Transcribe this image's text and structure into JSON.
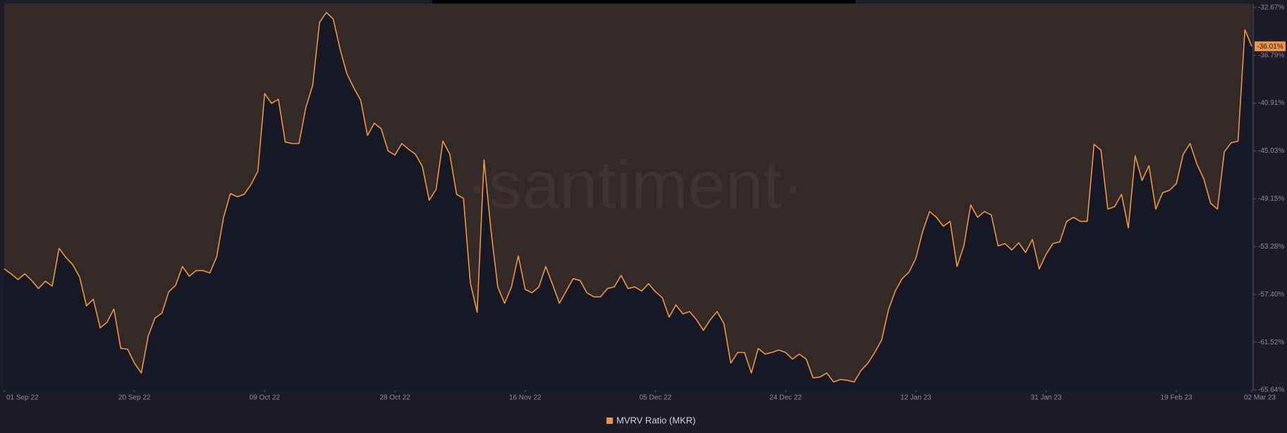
{
  "chart_data": {
    "type": "line",
    "watermark": "·santiment·",
    "x": [
      "2022-09-01",
      "2022-09-02",
      "2022-09-03",
      "2022-09-04",
      "2022-09-05",
      "2022-09-06",
      "2022-09-07",
      "2022-09-08",
      "2022-09-09",
      "2022-09-10",
      "2022-09-11",
      "2022-09-12",
      "2022-09-13",
      "2022-09-14",
      "2022-09-15",
      "2022-09-16",
      "2022-09-17",
      "2022-09-18",
      "2022-09-19",
      "2022-09-20",
      "2022-09-21",
      "2022-09-22",
      "2022-09-23",
      "2022-09-24",
      "2022-09-25",
      "2022-09-26",
      "2022-09-27",
      "2022-09-28",
      "2022-09-29",
      "2022-09-30",
      "2022-10-01",
      "2022-10-02",
      "2022-10-03",
      "2022-10-04",
      "2022-10-05",
      "2022-10-06",
      "2022-10-07",
      "2022-10-08",
      "2022-10-09",
      "2022-10-10",
      "2022-10-11",
      "2022-10-12",
      "2022-10-13",
      "2022-10-14",
      "2022-10-15",
      "2022-10-16",
      "2022-10-17",
      "2022-10-18",
      "2022-10-19",
      "2022-10-20",
      "2022-10-21",
      "2022-10-22",
      "2022-10-23",
      "2022-10-24",
      "2022-10-25",
      "2022-10-26",
      "2022-10-27",
      "2022-10-28",
      "2022-10-29",
      "2022-10-30",
      "2022-10-31",
      "2022-11-01",
      "2022-11-02",
      "2022-11-03",
      "2022-11-04",
      "2022-11-05",
      "2022-11-06",
      "2022-11-07",
      "2022-11-08",
      "2022-11-09",
      "2022-11-10",
      "2022-11-11",
      "2022-11-12",
      "2022-11-13",
      "2022-11-14",
      "2022-11-15",
      "2022-11-16",
      "2022-11-17",
      "2022-11-18",
      "2022-11-19",
      "2022-11-20",
      "2022-11-21",
      "2022-11-22",
      "2022-11-23",
      "2022-11-24",
      "2022-11-25",
      "2022-11-26",
      "2022-11-27",
      "2022-11-28",
      "2022-11-29",
      "2022-11-30",
      "2022-12-01",
      "2022-12-02",
      "2022-12-03",
      "2022-12-04",
      "2022-12-05",
      "2022-12-06",
      "2022-12-07",
      "2022-12-08",
      "2022-12-09",
      "2022-12-10",
      "2022-12-11",
      "2022-12-12",
      "2022-12-13",
      "2022-12-14",
      "2022-12-15",
      "2022-12-16",
      "2022-12-17",
      "2022-12-18",
      "2022-12-19",
      "2022-12-20",
      "2022-12-21",
      "2022-12-22",
      "2022-12-23",
      "2022-12-24",
      "2022-12-25",
      "2022-12-26",
      "2022-12-27",
      "2022-12-28",
      "2022-12-29",
      "2022-12-30",
      "2022-12-31",
      "2023-01-01",
      "2023-01-02",
      "2023-01-03",
      "2023-01-04",
      "2023-01-05",
      "2023-01-06",
      "2023-01-07",
      "2023-01-08",
      "2023-01-09",
      "2023-01-10",
      "2023-01-11",
      "2023-01-12",
      "2023-01-13",
      "2023-01-14",
      "2023-01-15",
      "2023-01-16",
      "2023-01-17",
      "2023-01-18",
      "2023-01-19",
      "2023-01-20",
      "2023-01-21",
      "2023-01-22",
      "2023-01-23",
      "2023-01-24",
      "2023-01-25",
      "2023-01-26",
      "2023-01-27",
      "2023-01-28",
      "2023-01-29",
      "2023-01-30",
      "2023-01-31",
      "2023-02-01",
      "2023-02-02",
      "2023-02-03",
      "2023-02-04",
      "2023-02-05",
      "2023-02-06",
      "2023-02-07",
      "2023-02-08",
      "2023-02-09",
      "2023-02-10",
      "2023-02-11",
      "2023-02-12",
      "2023-02-13",
      "2023-02-14",
      "2023-02-15",
      "2023-02-16",
      "2023-02-17",
      "2023-02-18",
      "2023-02-19",
      "2023-02-20",
      "2023-02-21",
      "2023-02-22",
      "2023-02-23",
      "2023-02-24",
      "2023-02-25",
      "2023-02-26",
      "2023-02-27",
      "2023-02-28",
      "2023-03-01",
      "2023-03-02"
    ],
    "series": [
      {
        "name": "MVRV Ratio (MKR)",
        "color": "#f0953f",
        "values": [
          -55.2,
          -55.62,
          -56.12,
          -55.62,
          -56.19,
          -56.89,
          -56.26,
          -56.68,
          -53.43,
          -54.21,
          -54.84,
          -55.9,
          -58.38,
          -57.81,
          -60.28,
          -59.79,
          -58.66,
          -62.05,
          -62.12,
          -63.32,
          -64.17,
          -60.99,
          -59.43,
          -59.01,
          -57.17,
          -56.61,
          -54.99,
          -55.83,
          -55.34,
          -55.34,
          -55.55,
          -54.14,
          -50.75,
          -48.7,
          -48.98,
          -48.77,
          -47.92,
          -46.79,
          -40.08,
          -40.93,
          -40.58,
          -44.25,
          -44.39,
          -44.39,
          -41.29,
          -39.38,
          -33.94,
          -33.09,
          -33.66,
          -36.27,
          -38.39,
          -39.59,
          -40.65,
          -43.69,
          -42.63,
          -43.12,
          -45.03,
          -45.38,
          -44.39,
          -44.89,
          -45.31,
          -46.37,
          -49.27,
          -48.35,
          -44.18,
          -45.31,
          -48.77,
          -49.12,
          -56.4,
          -58.94,
          -45.8,
          -51.81,
          -56.75,
          -58.16,
          -56.75,
          -54.07,
          -56.96,
          -57.25,
          -56.75,
          -54.99,
          -56.54,
          -58.16,
          -57.1,
          -56.04,
          -56.19,
          -57.25,
          -57.6,
          -57.6,
          -56.89,
          -56.75,
          -55.76,
          -56.89,
          -56.75,
          -57.1,
          -56.47,
          -57.17,
          -57.67,
          -59.36,
          -58.3,
          -59.08,
          -58.87,
          -59.58,
          -60.49,
          -59.58,
          -58.87,
          -59.93,
          -63.32,
          -62.4,
          -62.4,
          -64.17,
          -62.05,
          -62.54,
          -62.4,
          -62.19,
          -62.4,
          -62.97,
          -62.54,
          -62.97,
          -64.59,
          -64.52,
          -64.17,
          -64.94,
          -64.73,
          -64.8,
          -64.94,
          -63.95,
          -63.32,
          -62.4,
          -61.34,
          -58.73,
          -57.1,
          -56.04,
          -55.48,
          -54.28,
          -51.95,
          -50.25,
          -50.75,
          -51.52,
          -51.1,
          -54.99,
          -53.22,
          -49.69,
          -50.75,
          -50.25,
          -50.54,
          -53.22,
          -53.01,
          -53.57,
          -52.94,
          -53.78,
          -52.66,
          -55.2,
          -53.93,
          -53.01,
          -52.87,
          -51.1,
          -50.75,
          -51.1,
          -51.1,
          -44.46,
          -44.96,
          -50.04,
          -49.83,
          -48.77,
          -51.67,
          -45.45,
          -47.57,
          -46.3,
          -50.04,
          -48.63,
          -48.42,
          -47.85,
          -45.31,
          -44.39,
          -46.16,
          -47.43,
          -49.55,
          -50.04,
          -45.1,
          -44.32,
          -44.18,
          -34.58,
          -36.01
        ]
      }
    ],
    "current_value": {
      "value": -36.01,
      "label": "-36.01%"
    },
    "xticks": [
      {
        "value": "2022-09-01",
        "label": "01 Sep 22"
      },
      {
        "value": "2022-09-20",
        "label": "20 Sep 22"
      },
      {
        "value": "2022-10-09",
        "label": "09 Oct 22"
      },
      {
        "value": "2022-10-28",
        "label": "28 Oct 22"
      },
      {
        "value": "2022-11-16",
        "label": "16 Nov 22"
      },
      {
        "value": "2022-12-05",
        "label": "05 Dec 22"
      },
      {
        "value": "2022-12-24",
        "label": "24 Dec 22"
      },
      {
        "value": "2023-01-12",
        "label": "12 Jan 23"
      },
      {
        "value": "2023-01-31",
        "label": "31 Jan 23"
      },
      {
        "value": "2023-02-19",
        "label": "19 Feb 23"
      },
      {
        "value": "2023-03-02",
        "label": "02 Mar 23"
      }
    ],
    "ylim": [
      -65.64,
      -32.32
    ],
    "yticks": [
      {
        "value": -32.67,
        "label": "-32.67%"
      },
      {
        "value": -36.79,
        "label": "-36.79%"
      },
      {
        "value": -40.91,
        "label": "-40.91%"
      },
      {
        "value": -45.03,
        "label": "-45.03%"
      },
      {
        "value": -49.15,
        "label": "-49.15%"
      },
      {
        "value": -53.28,
        "label": "-53.28%"
      },
      {
        "value": -57.4,
        "label": "-57.40%"
      },
      {
        "value": -61.52,
        "label": "-61.52%"
      },
      {
        "value": -65.64,
        "label": "-65.64%"
      }
    ],
    "grid": false,
    "legend": "bottom"
  }
}
